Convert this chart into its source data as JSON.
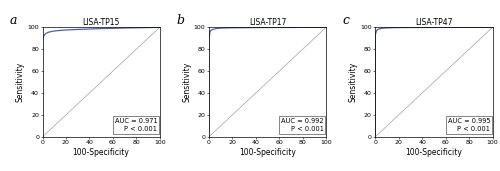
{
  "panels": [
    {
      "label": "a",
      "title": "LISA-TP15",
      "auc_text": "AUC = 0.971",
      "p_text": "P < 0.001",
      "roc_x": [
        0,
        0,
        1,
        2,
        3,
        4,
        5,
        6,
        7,
        8,
        10,
        12,
        15,
        20,
        30,
        40,
        50,
        60,
        70,
        80,
        90,
        100
      ],
      "roc_y": [
        0,
        88,
        92,
        93.5,
        94.5,
        95,
        95.5,
        95.8,
        96.0,
        96.3,
        96.6,
        96.9,
        97.2,
        97.6,
        98.1,
        98.5,
        98.9,
        99.1,
        99.4,
        99.6,
        99.8,
        100
      ]
    },
    {
      "label": "b",
      "title": "LISA-TP17",
      "auc_text": "AUC = 0.992",
      "p_text": "P < 0.001",
      "roc_x": [
        0,
        0,
        1,
        2,
        3,
        4,
        5,
        6,
        7,
        8,
        10,
        15,
        20,
        30,
        40,
        50,
        60,
        70,
        80,
        90,
        100
      ],
      "roc_y": [
        0,
        90,
        96,
        97.5,
        98.0,
        98.3,
        98.6,
        98.8,
        99.0,
        99.1,
        99.3,
        99.5,
        99.6,
        99.7,
        99.8,
        99.85,
        99.9,
        99.9,
        100,
        100,
        100
      ]
    },
    {
      "label": "c",
      "title": "LISA-TP47",
      "auc_text": "AUC = 0.995",
      "p_text": "P < 0.001",
      "roc_x": [
        0,
        0,
        1,
        2,
        3,
        4,
        5,
        6,
        7,
        8,
        10,
        15,
        20,
        30,
        40,
        50,
        60,
        70,
        80,
        90,
        100
      ],
      "roc_y": [
        0,
        93,
        97,
        98.0,
        98.5,
        98.8,
        99.0,
        99.2,
        99.3,
        99.4,
        99.5,
        99.7,
        99.8,
        99.85,
        99.9,
        99.9,
        100,
        100,
        100,
        100,
        100
      ]
    }
  ],
  "roc_color": "#5060a8",
  "diag_color": "#b0b0b0",
  "xlabel": "100-Specificity",
  "ylabel": "Sensitivity",
  "xlim": [
    0,
    100
  ],
  "ylim": [
    0,
    100
  ],
  "xticks": [
    0,
    20,
    40,
    60,
    80,
    100
  ],
  "yticks": [
    0,
    20,
    40,
    60,
    80,
    100
  ],
  "tick_fontsize": 4.5,
  "label_fontsize": 5.5,
  "title_fontsize": 5.5,
  "annotation_fontsize": 4.8,
  "panel_label_fontsize": 9
}
